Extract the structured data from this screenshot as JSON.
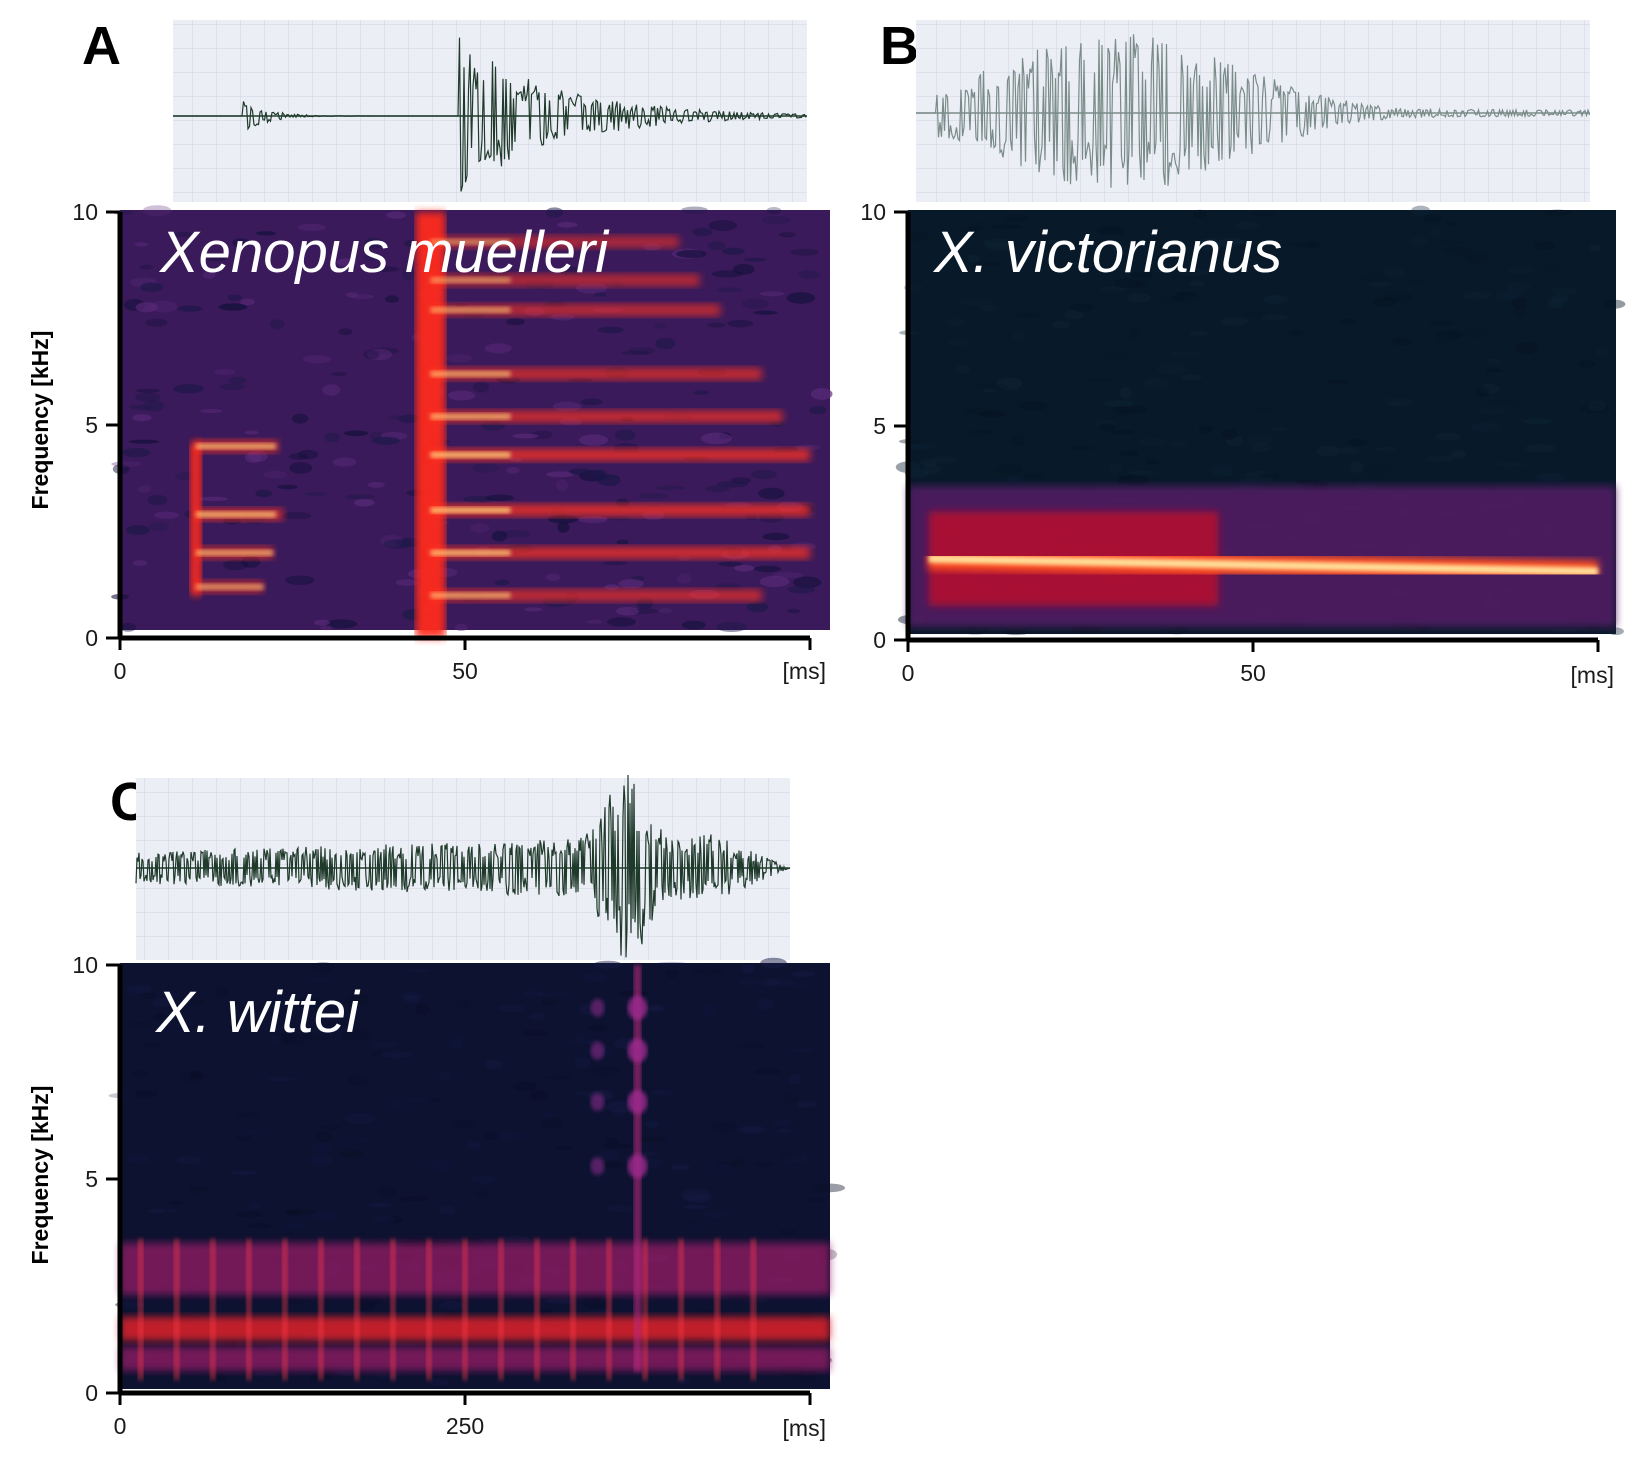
{
  "chart_data": [
    {
      "type": "spectrogram",
      "panel": "A",
      "species": "Xenopus muelleri",
      "ylabel": "Frequency [kHz]",
      "xlabel": "",
      "x_unit_label": "[ms]",
      "xlim": [
        0,
        100
      ],
      "ylim": [
        0,
        10
      ],
      "x_ticks": [
        "0",
        "50"
      ],
      "y_ticks": [
        "0",
        "5",
        "10"
      ],
      "background": "#3a1a5a",
      "waveform_color": "#1f3a2a",
      "clicks": [
        {
          "start_ms": 11,
          "decay_ms": 14,
          "waveform_amplitude": 0.25,
          "harmonics_khz": [
            1.2,
            2.0,
            2.9,
            4.5
          ],
          "harmonic_strength": [
            0.7,
            0.8,
            0.9,
            0.85
          ]
        },
        {
          "start_ms": 45,
          "decay_ms": 60,
          "waveform_amplitude": 1.0,
          "harmonics_khz": [
            1.0,
            2.0,
            3.0,
            4.3,
            5.2,
            6.2,
            7.7,
            8.4,
            9.3
          ],
          "harmonic_strength": [
            0.8,
            0.95,
            1.0,
            1.0,
            0.85,
            0.8,
            0.7,
            0.65,
            0.6
          ]
        }
      ]
    },
    {
      "type": "spectrogram",
      "panel": "B",
      "species": "X. victorianus",
      "ylabel": "",
      "xlabel": "",
      "x_unit_label": "[ms]",
      "xlim": [
        0,
        100
      ],
      "ylim": [
        0,
        10
      ],
      "x_ticks": [
        "0",
        "50"
      ],
      "y_ticks": [
        "0",
        "5",
        "10"
      ],
      "background": "#081a2a",
      "waveform_color": "#7a8c88",
      "dominant_khz": [
        1.9,
        1.6
      ],
      "energy_band_khz": [
        0.3,
        3.6
      ],
      "call_start_ms": 3,
      "call_end_ms": 100
    },
    {
      "type": "spectrogram",
      "panel": "C",
      "species": "X. wittei",
      "ylabel": "Frequency [kHz]",
      "xlabel": "",
      "x_unit_label": "[ms]",
      "xlim": [
        0,
        500
      ],
      "ylim": [
        0,
        10
      ],
      "x_ticks": [
        "0",
        "250"
      ],
      "y_ticks": [
        "0",
        "5",
        "10"
      ],
      "background": "#0c1230",
      "waveform_color": "#1f3a2a",
      "pulse_count": 18,
      "bands_khz": [
        0.8,
        1.5,
        2.9
      ],
      "peak_ms": 375
    }
  ]
}
